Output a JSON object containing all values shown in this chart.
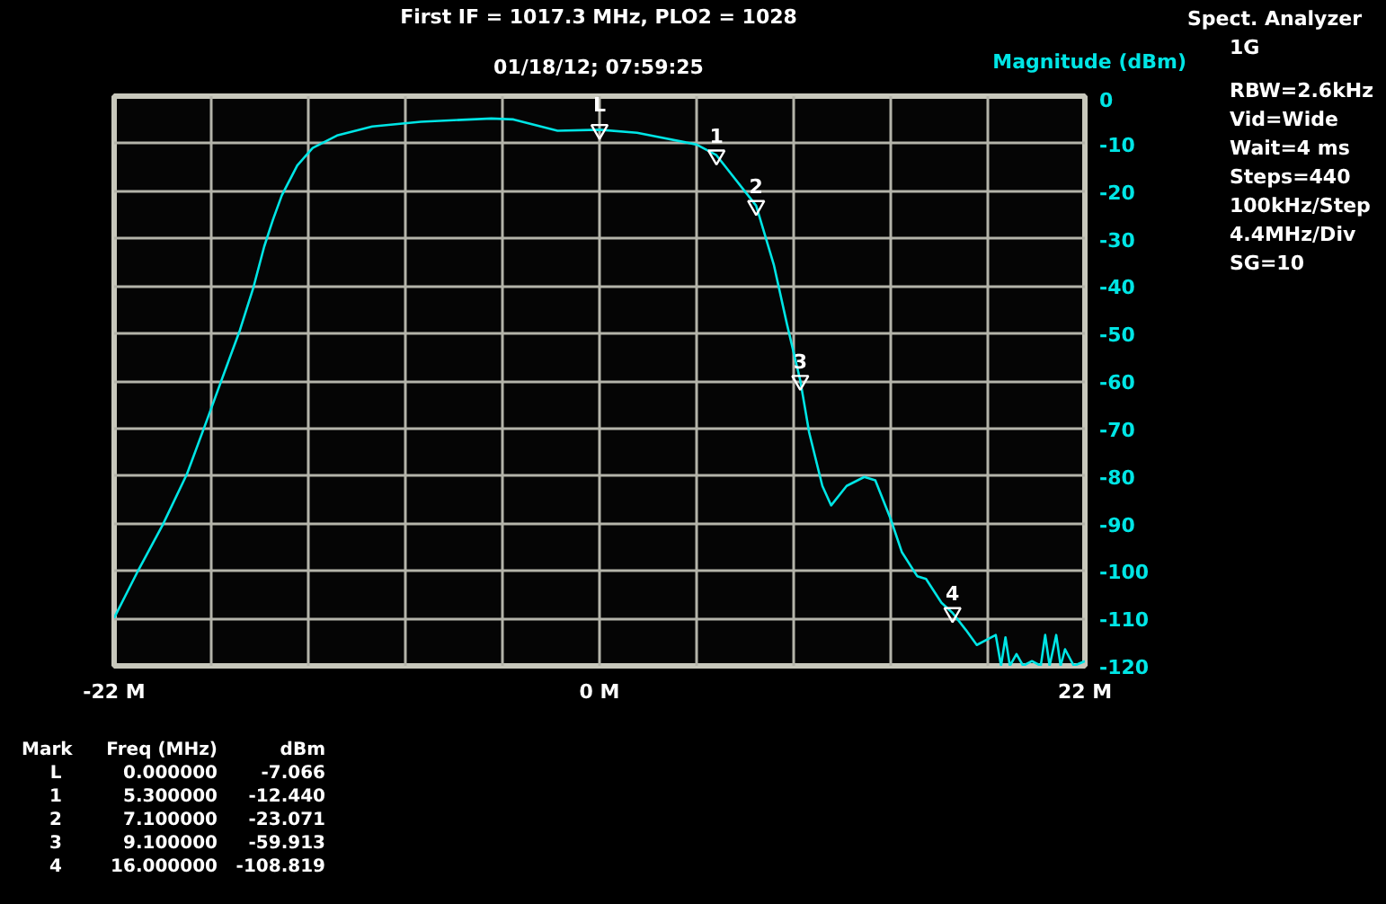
{
  "chart_data": {
    "type": "line",
    "title": "First IF = 1017.3 MHz, PLO2 = 1028",
    "subtitle": "01/18/12; 07:59:25",
    "ylabel": "Magnitude (dBm)",
    "xlim": [
      -22,
      22
    ],
    "ylim": [
      -120,
      0
    ],
    "xticks": [
      {
        "value": -22,
        "label": "-22 M"
      },
      {
        "value": -17.6,
        "label": null
      },
      {
        "value": -13.2,
        "label": null
      },
      {
        "value": -8.8,
        "label": null
      },
      {
        "value": -4.4,
        "label": null
      },
      {
        "value": 0,
        "label": "0 M"
      },
      {
        "value": 4.4,
        "label": null
      },
      {
        "value": 8.8,
        "label": null
      },
      {
        "value": 13.2,
        "label": null
      },
      {
        "value": 17.6,
        "label": null
      },
      {
        "value": 22,
        "label": "22 M"
      }
    ],
    "yticks": [
      0,
      -10,
      -20,
      -30,
      -40,
      -50,
      -60,
      -70,
      -80,
      -90,
      -100,
      -110,
      -120
    ],
    "grid": true,
    "line_style": "solid",
    "marker": "none",
    "series": [
      {
        "color": "#00e5e5",
        "x": [
          -22,
          -20.9,
          -19.8,
          -18.7,
          -17.8,
          -17.1,
          -16.3,
          -15.7,
          -15.2,
          -14.8,
          -14.4,
          -13.7,
          -13.0,
          -11.9,
          -10.3,
          -8.1,
          -4.9,
          -3.9,
          -1.9,
          0,
          1.7,
          4.4,
          5.3,
          7.1,
          7.9,
          8.5,
          9.1,
          9.5,
          10.1,
          10.5,
          11.2,
          12.0,
          12.5,
          13.2,
          13.7,
          14.4,
          14.8,
          15.5,
          16,
          16.6,
          17.1,
          17.96,
          18.2,
          18.4,
          18.6,
          18.9,
          19.2,
          19.6,
          20.0,
          20.2,
          20.4,
          20.7,
          20.9,
          21.1,
          21.5,
          22
        ],
        "values": [
          -109.9,
          -99.8,
          -90.3,
          -79.6,
          -68.3,
          -59.4,
          -49.3,
          -40.5,
          -31.7,
          -26,
          -20.9,
          -14.6,
          -10.9,
          -8.3,
          -6.4,
          -5.4,
          -4.7,
          -4.9,
          -7.3,
          -7.066,
          -7.7,
          -10.2,
          -12.44,
          -23.071,
          -35.5,
          -48.1,
          -59.913,
          -70.8,
          -82.1,
          -86.2,
          -82.1,
          -80.2,
          -80.9,
          -89.1,
          -96,
          -101.1,
          -101.7,
          -106.7,
          -108.819,
          -112.4,
          -115.6,
          -113.5,
          -120,
          -114,
          -120,
          -117.5,
          -120,
          -119,
          -120,
          -113.5,
          -120,
          -113.5,
          -120,
          -116.5,
          -120,
          -119
        ]
      },
      {
        "color": "#ffffff",
        "type": "scatter",
        "marker": "triangle",
        "x": [
          0,
          5.3,
          7.1,
          9.1,
          16
        ],
        "values": [
          -7.066,
          -12.44,
          -23.071,
          -59.913,
          -108.819
        ]
      }
    ],
    "annotations": [
      {
        "text": "L",
        "x": 0,
        "y": -7.066
      },
      {
        "text": "1",
        "x": 5.3,
        "y": -12.44
      },
      {
        "text": "2",
        "x": 7.1,
        "y": -23.071
      },
      {
        "text": "3",
        "x": 9.1,
        "y": -59.913
      },
      {
        "text": "4",
        "x": 16,
        "y": -108.819
      },
      "Spect. Analyzer",
      "1G",
      "RBW=2.6kHz",
      "Vid=Wide",
      "Wait=4 ms",
      "Steps=440",
      "100kHz/Step",
      "4.4MHz/Div",
      "SG=10",
      "Mark  Freq (MHz)  dBm",
      "L  0.000000  -7.066",
      "1  5.300000  -12.440",
      "2  7.100000  -23.071",
      "3  9.100000  -59.913",
      "4  16.000000  -108.819"
    ]
  }
}
